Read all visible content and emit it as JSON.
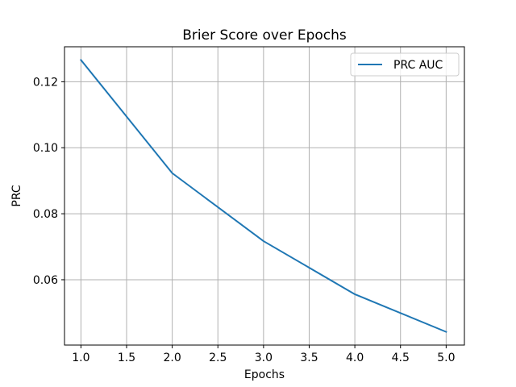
{
  "chart_data": {
    "type": "line",
    "title": "Brier Score over Epochs",
    "xlabel": "Epochs",
    "ylabel": "PRC",
    "x": [
      1.0,
      2.0,
      3.0,
      4.0,
      5.0
    ],
    "series": [
      {
        "name": "PRC AUC",
        "values": [
          0.1266,
          0.0923,
          0.0717,
          0.0556,
          0.0442
        ]
      }
    ],
    "xlim": [
      0.82,
      5.2
    ],
    "ylim": [
      0.0402,
      0.1306
    ],
    "xticks": [
      1.0,
      1.5,
      2.0,
      2.5,
      3.0,
      3.5,
      4.0,
      4.5,
      5.0
    ],
    "xtick_labels": [
      "1.0",
      "1.5",
      "2.0",
      "2.5",
      "3.0",
      "3.5",
      "4.0",
      "4.5",
      "5.0"
    ],
    "yticks": [
      0.06,
      0.08,
      0.1,
      0.12
    ],
    "ytick_labels": [
      "0.06",
      "0.08",
      "0.10",
      "0.12"
    ],
    "grid": true,
    "legend_position": "top-right",
    "colors": {
      "series": "#1f77b4",
      "grid": "#b0b0b0",
      "axes": "#000000"
    }
  }
}
